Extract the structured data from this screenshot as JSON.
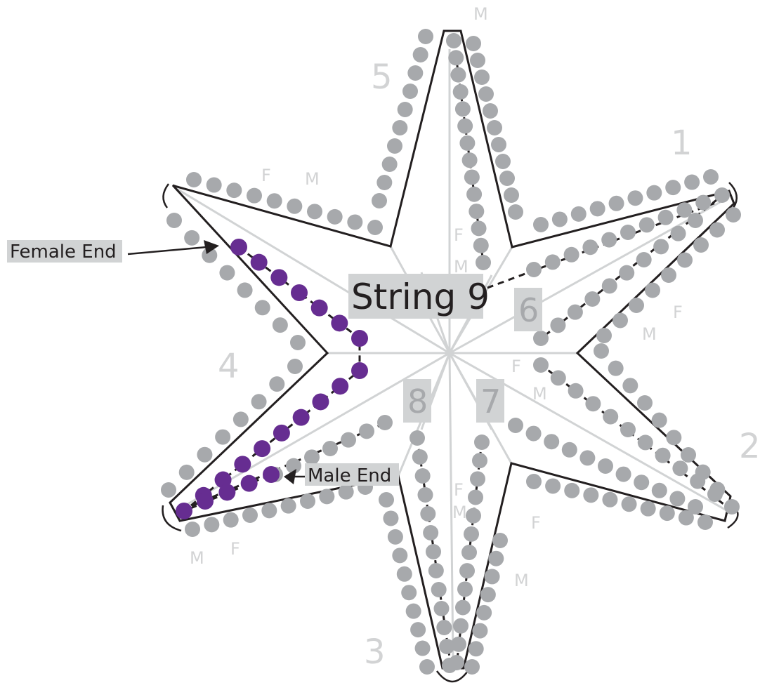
{
  "diagram": {
    "title": "String 9",
    "female_end_label": "Female End",
    "male_end_label": "Male End",
    "arm_numbers": [
      "1",
      "2",
      "3",
      "4",
      "5"
    ],
    "inner_numbers": [
      "6",
      "7",
      "8"
    ],
    "gender_marks": {
      "male": "M",
      "female": "F"
    },
    "colors": {
      "bead_grey": "#a7a9ac",
      "bead_highlight": "#662d91",
      "outline": "#231f20",
      "guide_line": "#d1d3d4",
      "label_box": "#d1d3d4",
      "faint_text": "#d2d3d4"
    }
  }
}
